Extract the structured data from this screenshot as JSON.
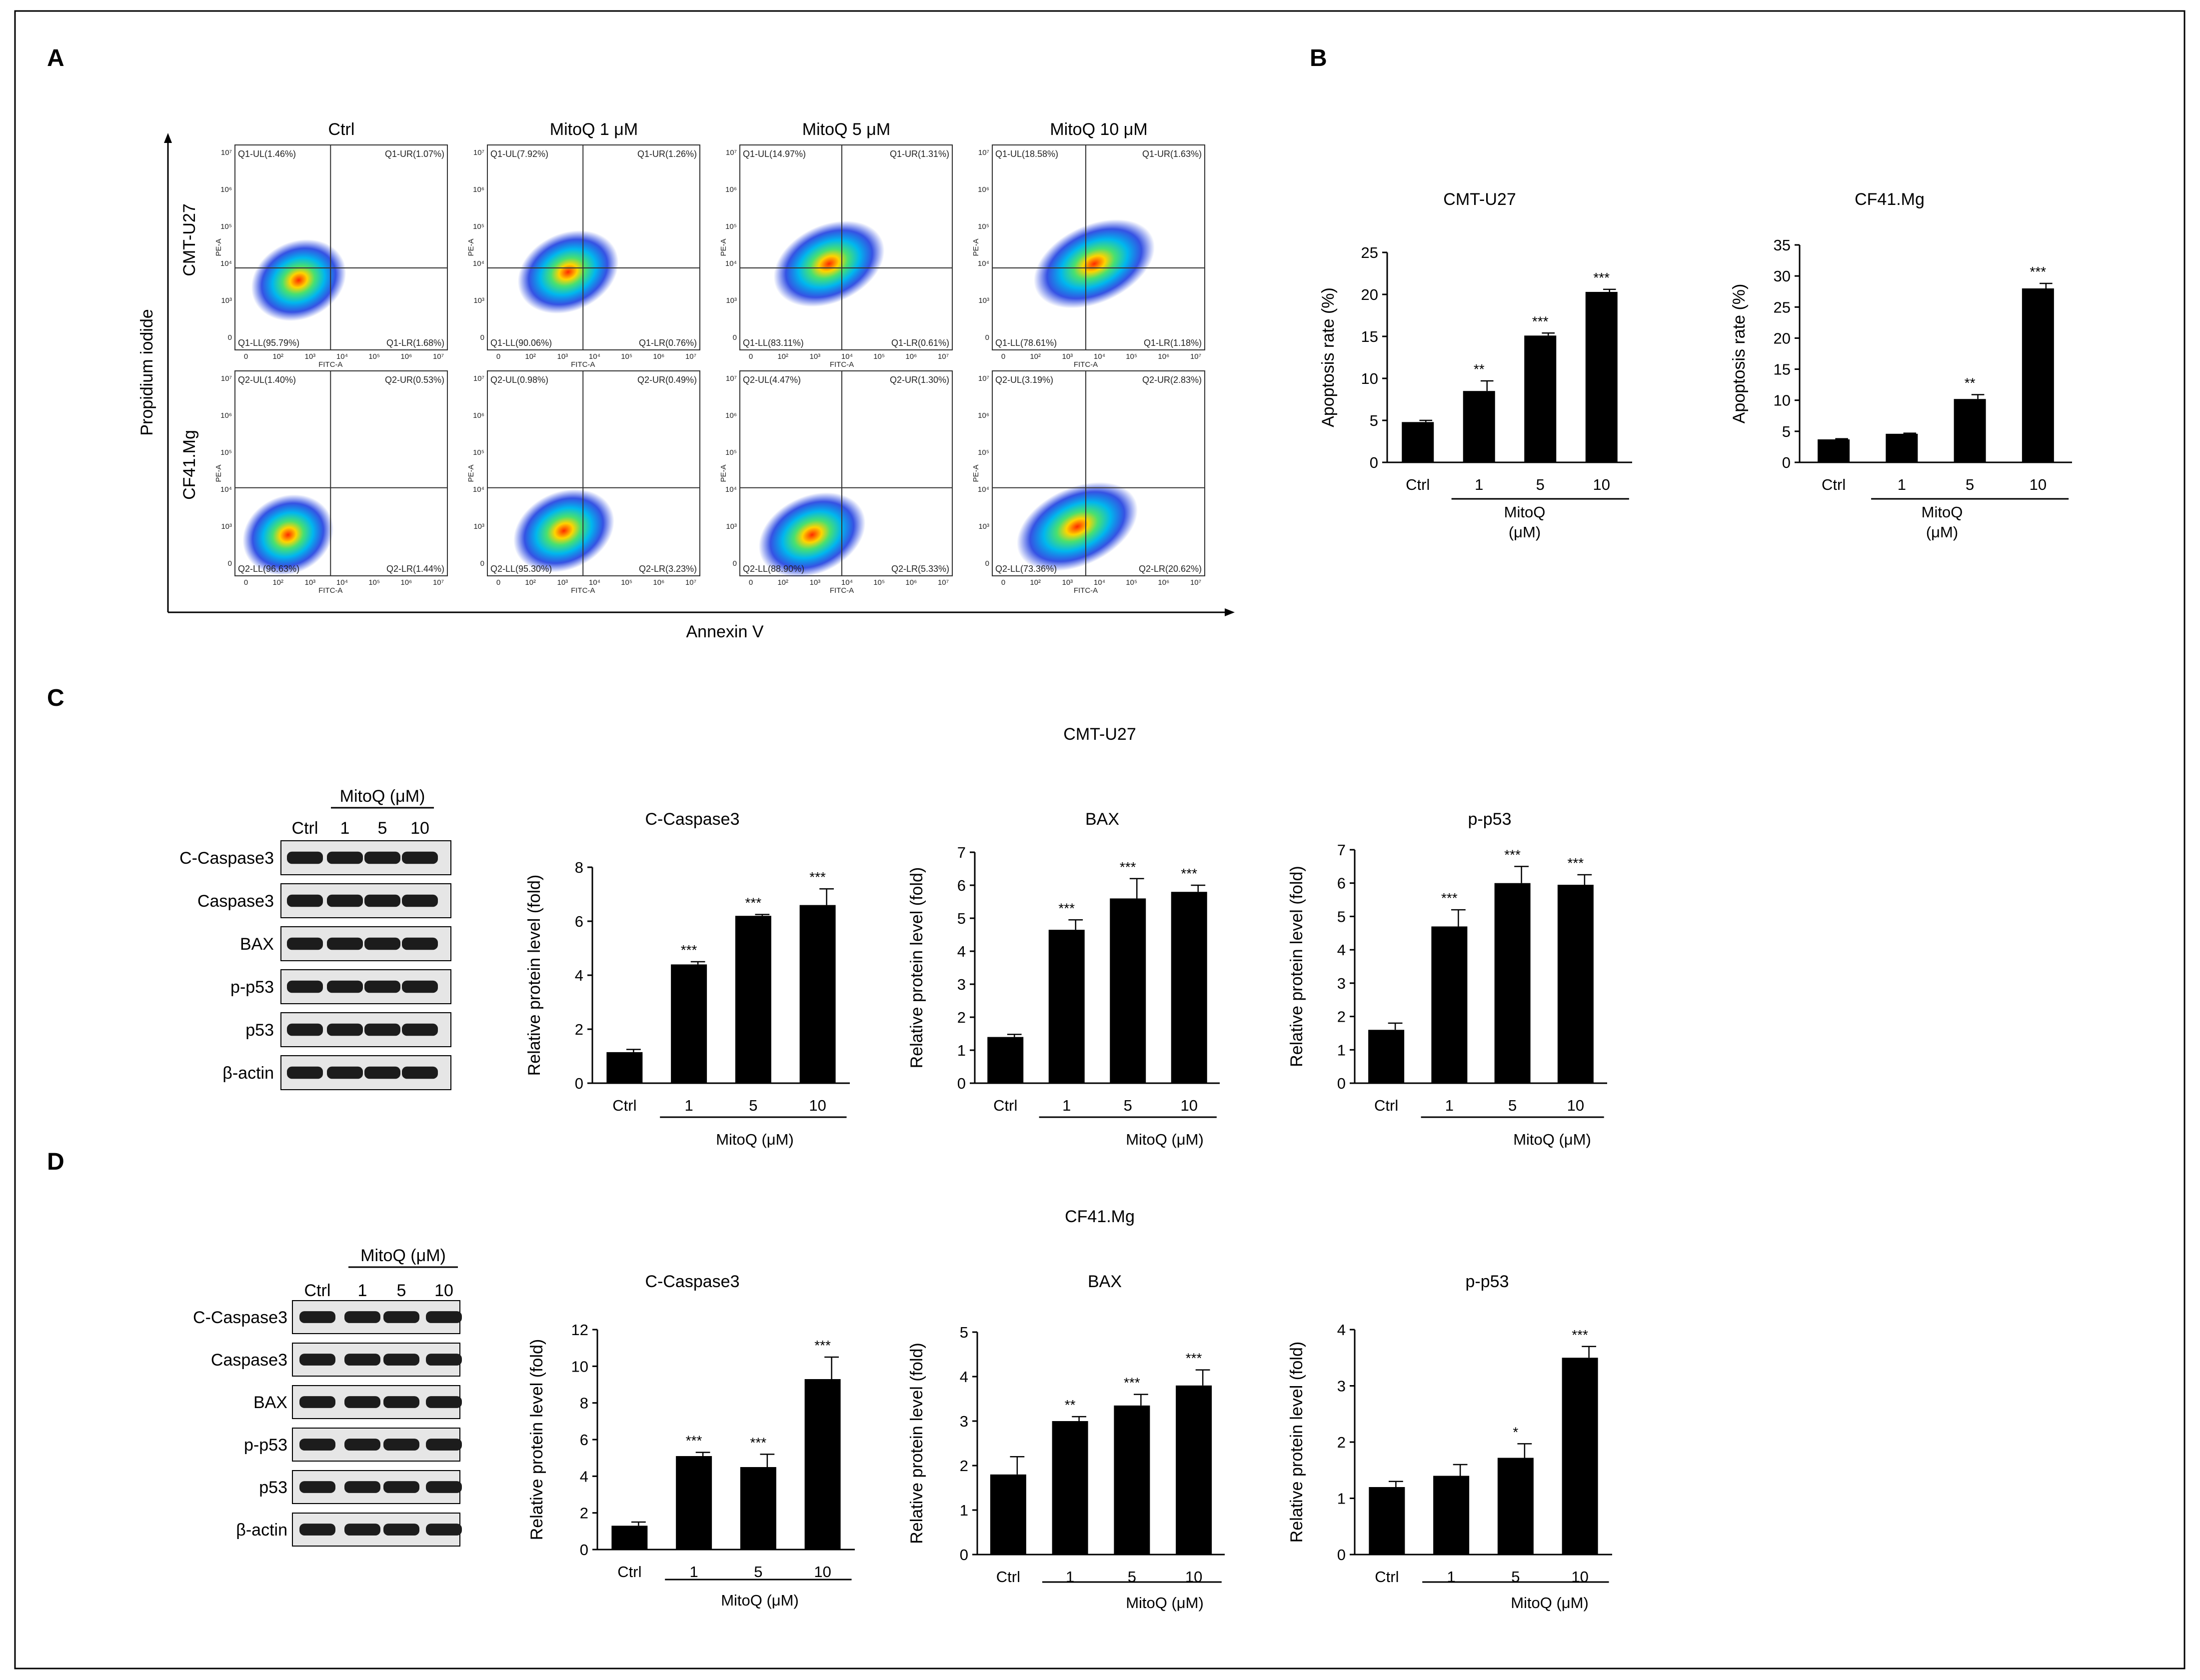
{
  "panel_letters": {
    "a": "A",
    "b": "B",
    "c": "C",
    "d": "D"
  },
  "flow": {
    "columns": [
      "Ctrl",
      "MitoQ 1 μM",
      "MitoQ 5 μM",
      "MitoQ 10 μM"
    ],
    "rows": [
      "CMT-U27",
      "CF41.Mg"
    ],
    "y_axis": "Propidium iodide",
    "x_axis": "Annexin V",
    "panel_x_label": "FITC-A",
    "panel_y_label": "PE-A",
    "x_ticks": [
      "0",
      "10²",
      "10³",
      "10⁴",
      "10⁵",
      "10⁶",
      "10⁷"
    ],
    "y_ticks": [
      "0",
      "10³",
      "10⁴",
      "10⁵",
      "10⁶",
      "10⁷"
    ],
    "quadrants": [
      [
        {
          "ul": "Q1-UL(1.46%)",
          "ur": "Q1-UR(1.07%)",
          "ll": "Q1-LL(95.79%)",
          "lr": "Q1-LR(1.68%)"
        },
        {
          "ul": "Q1-UL(7.92%)",
          "ur": "Q1-UR(1.26%)",
          "ll": "Q1-LL(90.06%)",
          "lr": "Q1-LR(0.76%)"
        },
        {
          "ul": "Q1-UL(14.97%)",
          "ur": "Q1-UR(1.31%)",
          "ll": "Q1-LL(83.11%)",
          "lr": "Q1-LR(0.61%)"
        },
        {
          "ul": "Q1-UL(18.58%)",
          "ur": "Q1-UR(1.63%)",
          "ll": "Q1-LL(78.61%)",
          "lr": "Q1-LR(1.18%)"
        }
      ],
      [
        {
          "ul": "Q2-UL(1.40%)",
          "ur": "Q2-UR(0.53%)",
          "ll": "Q2-LL(96.63%)",
          "lr": "Q2-LR(1.44%)"
        },
        {
          "ul": "Q2-UL(0.98%)",
          "ur": "Q2-UR(0.49%)",
          "ll": "Q2-LL(95.30%)",
          "lr": "Q2-LR(3.23%)"
        },
        {
          "ul": "Q2-UL(4.47%)",
          "ur": "Q2-UR(1.30%)",
          "ll": "Q2-LL(88.90%)",
          "lr": "Q2-LR(5.33%)"
        },
        {
          "ul": "Q2-UL(3.19%)",
          "ur": "Q2-UR(2.83%)",
          "ll": "Q2-LL(73.36%)",
          "lr": "Q2-LR(20.62%)"
        }
      ]
    ]
  },
  "blots": {
    "group_label": "MitoQ (μM)",
    "lanes": [
      "Ctrl",
      "1",
      "5",
      "10"
    ],
    "proteins": [
      "C-Caspase3",
      "Caspase3",
      "BAX",
      "p-p53",
      "p53",
      "β-actin"
    ]
  },
  "section_titles": {
    "c": "CMT-U27",
    "d": "CF41.Mg"
  },
  "chart_data": [
    {
      "id": "B1",
      "type": "bar",
      "title": "CMT-U27",
      "ylabel": "Apoptosis rate  (%)",
      "categories": [
        "Ctrl",
        "1",
        "5",
        "10"
      ],
      "group_label": "MitoQ (μM)",
      "group_label_lines": [
        "MitoQ",
        "(μM)"
      ],
      "values": [
        4.8,
        8.5,
        15.1,
        20.3
      ],
      "errors": [
        0.2,
        1.2,
        0.3,
        0.3
      ],
      "significance": [
        "",
        "**",
        "***",
        "***"
      ],
      "ylim": [
        0,
        25
      ],
      "yticks": [
        0,
        5,
        10,
        15,
        20,
        25
      ]
    },
    {
      "id": "B2",
      "type": "bar",
      "title": "CF41.Mg",
      "ylabel": "Apoptosis rate  (%)",
      "categories": [
        "Ctrl",
        "1",
        "5",
        "10"
      ],
      "group_label": "MitoQ (μM)",
      "group_label_lines": [
        "MitoQ",
        "(μM)"
      ],
      "values": [
        3.7,
        4.6,
        10.2,
        28.0
      ],
      "errors": [
        0.1,
        0.1,
        0.7,
        0.8
      ],
      "significance": [
        "",
        "",
        "**",
        "***"
      ],
      "ylim": [
        0,
        35
      ],
      "yticks": [
        0,
        5,
        10,
        15,
        20,
        25,
        30,
        35
      ]
    },
    {
      "id": "C1",
      "type": "bar",
      "title": "C-Caspase3",
      "ylabel": "Relative protein level (fold)",
      "categories": [
        "Ctrl",
        "1",
        "5",
        "10"
      ],
      "group_label": "MitoQ (μM)",
      "values": [
        1.15,
        4.4,
        6.2,
        6.6
      ],
      "errors": [
        0.1,
        0.1,
        0.05,
        0.6
      ],
      "significance": [
        "",
        "***",
        "***",
        "***"
      ],
      "ylim": [
        0,
        8
      ],
      "yticks": [
        0,
        2,
        4,
        6,
        8
      ]
    },
    {
      "id": "C2",
      "type": "bar",
      "title": "BAX",
      "ylabel": "Relative protein level (fold)",
      "categories": [
        "Ctrl",
        "1",
        "5",
        "10"
      ],
      "group_label": "MitoQ (μM)",
      "values": [
        1.4,
        4.65,
        5.6,
        5.8
      ],
      "errors": [
        0.08,
        0.3,
        0.6,
        0.2
      ],
      "significance": [
        "",
        "***",
        "***",
        "***"
      ],
      "ylim": [
        0,
        7
      ],
      "yticks": [
        0,
        1,
        2,
        3,
        4,
        5,
        6,
        7
      ]
    },
    {
      "id": "C3",
      "type": "bar",
      "title": "p-p53",
      "ylabel": "Relative protein level (fold)",
      "categories": [
        "Ctrl",
        "1",
        "5",
        "10"
      ],
      "group_label": "MitoQ (μM)",
      "values": [
        1.6,
        4.7,
        6.0,
        5.95
      ],
      "errors": [
        0.2,
        0.5,
        0.5,
        0.3
      ],
      "significance": [
        "",
        "***",
        "***",
        "***"
      ],
      "ylim": [
        0,
        7
      ],
      "yticks": [
        0,
        1,
        2,
        3,
        4,
        5,
        6,
        7
      ]
    },
    {
      "id": "D1",
      "type": "bar",
      "title": "C-Caspase3",
      "ylabel": "Relative protein level (fold)",
      "categories": [
        "Ctrl",
        "1",
        "5",
        "10"
      ],
      "group_label": "MitoQ (μM)",
      "values": [
        1.3,
        5.1,
        4.5,
        9.3
      ],
      "errors": [
        0.2,
        0.2,
        0.7,
        1.2
      ],
      "significance": [
        "",
        "***",
        "***",
        "***"
      ],
      "ylim": [
        0,
        12
      ],
      "yticks": [
        0,
        2,
        4,
        6,
        8,
        10,
        12
      ]
    },
    {
      "id": "D2",
      "type": "bar",
      "title": "BAX",
      "ylabel": "Relative protein level (fold)",
      "categories": [
        "Ctrl",
        "1",
        "5",
        "10"
      ],
      "group_label": "MitoQ (μM)",
      "values": [
        1.8,
        3.0,
        3.35,
        3.8
      ],
      "errors": [
        0.4,
        0.1,
        0.25,
        0.35
      ],
      "significance": [
        "",
        "**",
        "***",
        "***"
      ],
      "ylim": [
        0,
        5
      ],
      "yticks": [
        0,
        1,
        2,
        3,
        4,
        5
      ]
    },
    {
      "id": "D3",
      "type": "bar",
      "title": "p-p53",
      "ylabel": "Relative protein level (fold)",
      "categories": [
        "Ctrl",
        "1",
        "5",
        "10"
      ],
      "group_label": "MitoQ (μM)",
      "values": [
        1.2,
        1.4,
        1.72,
        3.5
      ],
      "errors": [
        0.1,
        0.2,
        0.25,
        0.2
      ],
      "significance": [
        "",
        "",
        "*",
        "***"
      ],
      "ylim": [
        0,
        4
      ],
      "yticks": [
        0,
        1,
        2,
        3,
        4
      ]
    }
  ]
}
